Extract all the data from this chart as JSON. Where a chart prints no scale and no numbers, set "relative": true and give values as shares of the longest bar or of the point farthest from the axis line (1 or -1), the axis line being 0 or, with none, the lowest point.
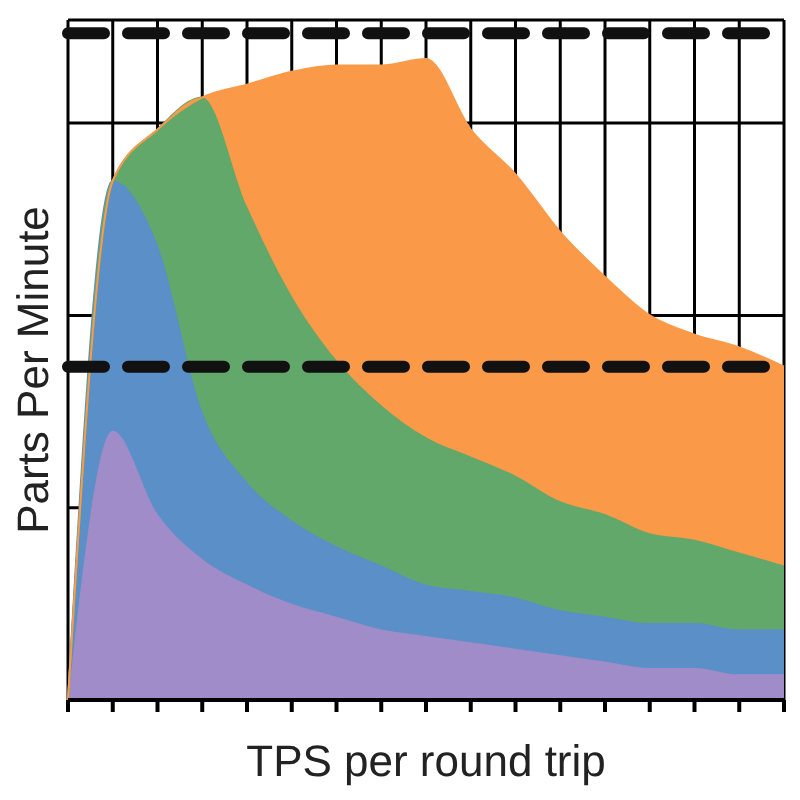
{
  "chart_data": {
    "type": "area",
    "xlabel": "TPS per round trip",
    "ylabel": "Parts Per Minute",
    "relative": true,
    "stacked": true,
    "grid": true,
    "legend": false,
    "marker": "none",
    "categories": [
      null,
      null,
      null,
      null,
      null,
      null,
      null,
      null,
      null,
      null,
      null,
      null,
      null,
      null,
      null,
      null,
      null
    ],
    "series": [
      {
        "color": "#a08cc8",
        "values": [
          0,
          0.42,
          0.29,
          0.22,
          0.18,
          0.15,
          0.13,
          0.11,
          0.1,
          0.09,
          0.08,
          0.07,
          0.06,
          0.05,
          0.05,
          0.04,
          0.04
        ]
      },
      {
        "color": "#5a8fc8",
        "values": [
          0,
          0.39,
          0.42,
          0.23,
          0.16,
          0.13,
          0.11,
          0.1,
          0.08,
          0.08,
          0.08,
          0.07,
          0.07,
          0.07,
          0.07,
          0.07,
          0.07
        ]
      },
      {
        "color": "#62a86a",
        "values": [
          0,
          0,
          0.18,
          0.49,
          0.43,
          0.35,
          0.29,
          0.25,
          0.23,
          0.21,
          0.19,
          0.17,
          0.16,
          0.14,
          0.13,
          0.12,
          0.1
        ]
      },
      {
        "color": "#fa9a48",
        "values": [
          0,
          0,
          0,
          0,
          0.19,
          0.35,
          0.46,
          0.53,
          0.59,
          0.51,
          0.47,
          0.42,
          0.37,
          0.34,
          0.32,
          0.32,
          0.31
        ]
      }
    ],
    "ref_lines": [
      {
        "axis": "y",
        "value": 1.04,
        "color": "#111111",
        "line_style": "dashed"
      },
      {
        "axis": "y",
        "value": 0.52,
        "color": "#111111",
        "line_style": "dashed"
      }
    ]
  }
}
